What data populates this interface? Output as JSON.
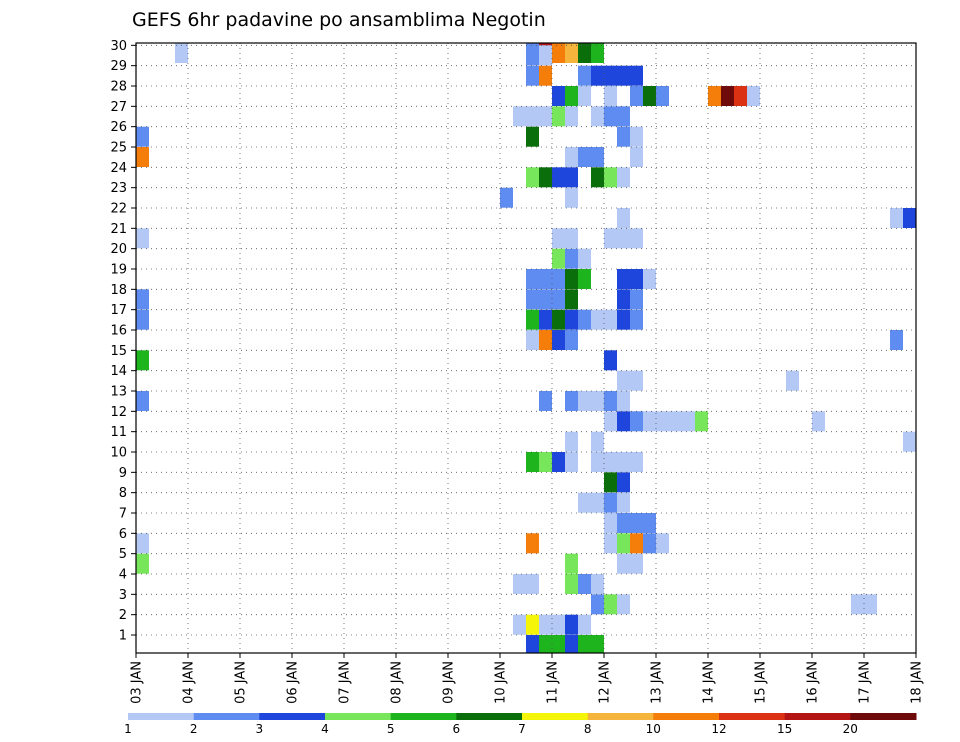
{
  "chart_data": {
    "type": "heatmap",
    "title": "GEFS 6hr padavine po ansamblima Negotin",
    "x_tick_labels": [
      "03 JAN",
      "04 JAN",
      "05 JAN",
      "06 JAN",
      "07 JAN",
      "08 JAN",
      "09 JAN",
      "10 JAN",
      "11 JAN",
      "12 JAN",
      "13 JAN",
      "14 JAN",
      "15 JAN",
      "16 JAN",
      "17 JAN",
      "18 JAN"
    ],
    "y_tick_labels": [
      "1",
      "2",
      "3",
      "4",
      "5",
      "6",
      "7",
      "8",
      "9",
      "10",
      "11",
      "12",
      "13",
      "14",
      "15",
      "16",
      "17",
      "18",
      "19",
      "20",
      "21",
      "22",
      "23",
      "24",
      "25",
      "26",
      "27",
      "28",
      "29",
      "30"
    ],
    "y_range": [
      0,
      30
    ],
    "grid": true,
    "x_unit_note": "column = 6-hour step starting 03 JAN 00Z",
    "colorbar": {
      "labels": [
        "1",
        "2",
        "3",
        "4",
        "5",
        "6",
        "7",
        "8",
        "10",
        "12",
        "15",
        "20"
      ],
      "colors": [
        "#b4c8f5",
        "#5f8cf0",
        "#1e46dc",
        "#78e65a",
        "#1eb41e",
        "#0a6e0a",
        "#f5f50a",
        "#f5b43c",
        "#f57d0a",
        "#dc3214",
        "#b41414",
        "#6e0a0a"
      ]
    },
    "cells": [
      [
        30,
        15,
        1
      ],
      [
        30,
        42,
        2
      ],
      [
        30,
        43,
        11
      ],
      [
        30,
        44,
        9
      ],
      [
        30,
        45,
        8
      ],
      [
        30,
        46,
        6
      ],
      [
        30,
        47,
        5
      ],
      [
        29,
        42,
        2
      ],
      [
        29,
        43,
        1
      ],
      [
        29,
        82,
        1
      ],
      [
        28,
        42,
        2
      ],
      [
        28,
        43,
        9
      ],
      [
        28,
        46,
        2
      ],
      [
        28,
        47,
        3
      ],
      [
        28,
        48,
        3
      ],
      [
        28,
        49,
        3
      ],
      [
        28,
        50,
        3
      ],
      [
        27,
        44,
        3
      ],
      [
        27,
        45,
        5
      ],
      [
        27,
        46,
        1
      ],
      [
        27,
        48,
        1
      ],
      [
        27,
        50,
        2
      ],
      [
        27,
        51,
        6
      ],
      [
        27,
        52,
        2
      ],
      [
        27,
        56,
        9
      ],
      [
        27,
        57,
        12
      ],
      [
        27,
        58,
        10
      ],
      [
        27,
        59,
        1
      ],
      [
        27,
        80,
        1
      ],
      [
        27,
        81,
        3
      ],
      [
        27,
        82,
        9
      ],
      [
        27,
        83,
        4
      ],
      [
        26,
        41,
        1
      ],
      [
        26,
        42,
        1
      ],
      [
        26,
        43,
        1
      ],
      [
        26,
        44,
        4
      ],
      [
        26,
        45,
        1
      ],
      [
        26,
        47,
        1
      ],
      [
        26,
        48,
        2
      ],
      [
        26,
        49,
        2
      ],
      [
        26,
        82,
        1
      ],
      [
        26,
        83,
        12
      ],
      [
        25,
        11,
        4
      ],
      [
        25,
        12,
        2
      ],
      [
        25,
        42,
        6
      ],
      [
        25,
        49,
        2
      ],
      [
        25,
        50,
        1
      ],
      [
        25,
        78,
        1
      ],
      [
        25,
        79,
        2
      ],
      [
        25,
        81,
        1
      ],
      [
        25,
        83,
        4
      ],
      [
        24,
        11,
        3
      ],
      [
        24,
        12,
        9
      ],
      [
        24,
        45,
        1
      ],
      [
        24,
        46,
        2
      ],
      [
        24,
        47,
        2
      ],
      [
        24,
        50,
        1
      ],
      [
        23,
        11,
        1
      ],
      [
        23,
        42,
        4
      ],
      [
        23,
        43,
        6
      ],
      [
        23,
        44,
        3
      ],
      [
        23,
        45,
        3
      ],
      [
        23,
        47,
        6
      ],
      [
        23,
        48,
        4
      ],
      [
        23,
        49,
        1
      ],
      [
        23,
        78,
        1
      ],
      [
        23,
        79,
        2
      ],
      [
        22,
        40,
        2
      ],
      [
        22,
        45,
        1
      ],
      [
        21,
        49,
        1
      ],
      [
        21,
        70,
        1
      ],
      [
        21,
        71,
        3
      ],
      [
        21,
        72,
        4
      ],
      [
        21,
        73,
        4
      ],
      [
        21,
        74,
        3
      ],
      [
        21,
        75,
        1
      ],
      [
        20,
        12,
        1
      ],
      [
        20,
        44,
        1
      ],
      [
        20,
        45,
        1
      ],
      [
        20,
        48,
        1
      ],
      [
        20,
        49,
        1
      ],
      [
        20,
        50,
        1
      ],
      [
        19,
        11,
        3
      ],
      [
        19,
        44,
        4
      ],
      [
        19,
        45,
        2
      ],
      [
        19,
        46,
        1
      ],
      [
        19,
        72,
        1
      ],
      [
        19,
        73,
        5
      ],
      [
        18,
        42,
        2
      ],
      [
        18,
        43,
        2
      ],
      [
        18,
        44,
        2
      ],
      [
        18,
        45,
        6
      ],
      [
        18,
        46,
        5
      ],
      [
        18,
        49,
        3
      ],
      [
        18,
        50,
        3
      ],
      [
        18,
        51,
        1
      ],
      [
        17,
        12,
        2
      ],
      [
        17,
        42,
        2
      ],
      [
        17,
        43,
        2
      ],
      [
        17,
        44,
        2
      ],
      [
        17,
        45,
        6
      ],
      [
        17,
        49,
        3
      ],
      [
        17,
        50,
        2
      ],
      [
        16,
        12,
        2
      ],
      [
        16,
        42,
        5
      ],
      [
        16,
        43,
        3
      ],
      [
        16,
        44,
        6
      ],
      [
        16,
        45,
        3
      ],
      [
        16,
        46,
        2
      ],
      [
        16,
        47,
        1
      ],
      [
        16,
        48,
        1
      ],
      [
        16,
        49,
        3
      ],
      [
        16,
        50,
        2
      ],
      [
        15,
        42,
        1
      ],
      [
        15,
        43,
        9
      ],
      [
        15,
        44,
        3
      ],
      [
        15,
        45,
        2
      ],
      [
        15,
        70,
        2
      ],
      [
        15,
        74,
        1
      ],
      [
        15,
        75,
        2
      ],
      [
        15,
        76,
        4
      ],
      [
        15,
        77,
        1
      ],
      [
        14,
        12,
        5
      ],
      [
        14,
        48,
        3
      ],
      [
        14,
        82,
        1
      ],
      [
        14,
        83,
        5
      ],
      [
        13,
        49,
        1
      ],
      [
        13,
        50,
        1
      ],
      [
        13,
        62,
        1
      ],
      [
        13,
        80,
        1
      ],
      [
        13,
        81,
        6
      ],
      [
        13,
        82,
        4
      ],
      [
        13,
        83,
        2
      ],
      [
        12,
        11,
        2
      ],
      [
        12,
        12,
        2
      ],
      [
        12,
        43,
        2
      ],
      [
        12,
        45,
        2
      ],
      [
        12,
        46,
        1
      ],
      [
        12,
        47,
        1
      ],
      [
        12,
        48,
        2
      ],
      [
        12,
        49,
        1
      ],
      [
        11,
        48,
        1
      ],
      [
        11,
        49,
        3
      ],
      [
        11,
        50,
        2
      ],
      [
        11,
        51,
        1
      ],
      [
        11,
        52,
        1
      ],
      [
        11,
        53,
        1
      ],
      [
        11,
        54,
        1
      ],
      [
        11,
        55,
        4
      ],
      [
        11,
        64,
        1
      ],
      [
        11,
        79,
        1
      ],
      [
        11,
        80,
        5
      ],
      [
        11,
        81,
        2
      ],
      [
        10,
        45,
        1
      ],
      [
        10,
        47,
        1
      ],
      [
        10,
        71,
        1
      ],
      [
        10,
        72,
        2
      ],
      [
        9,
        42,
        5
      ],
      [
        9,
        43,
        4
      ],
      [
        9,
        44,
        3
      ],
      [
        9,
        45,
        1
      ],
      [
        9,
        47,
        1
      ],
      [
        9,
        48,
        1
      ],
      [
        9,
        49,
        1
      ],
      [
        9,
        50,
        1
      ],
      [
        9,
        76,
        2
      ],
      [
        8,
        11,
        2
      ],
      [
        8,
        48,
        6
      ],
      [
        8,
        49,
        3
      ],
      [
        7,
        46,
        1
      ],
      [
        7,
        47,
        1
      ],
      [
        7,
        48,
        2
      ],
      [
        7,
        49,
        1
      ],
      [
        6,
        11,
        1
      ],
      [
        6,
        48,
        1
      ],
      [
        6,
        49,
        2
      ],
      [
        6,
        50,
        2
      ],
      [
        6,
        51,
        2
      ],
      [
        5,
        12,
        1
      ],
      [
        5,
        42,
        9
      ],
      [
        5,
        48,
        1
      ],
      [
        5,
        49,
        4
      ],
      [
        5,
        50,
        9
      ],
      [
        5,
        51,
        2
      ],
      [
        5,
        52,
        1
      ],
      [
        5,
        73,
        1
      ],
      [
        5,
        74,
        1
      ],
      [
        5,
        75,
        10
      ],
      [
        5,
        76,
        1
      ],
      [
        5,
        81,
        1
      ],
      [
        5,
        82,
        2
      ],
      [
        4,
        12,
        4
      ],
      [
        4,
        45,
        4
      ],
      [
        4,
        49,
        1
      ],
      [
        4,
        50,
        1
      ],
      [
        4,
        77,
        1
      ],
      [
        4,
        81,
        4
      ],
      [
        4,
        82,
        4
      ],
      [
        3,
        41,
        1
      ],
      [
        3,
        42,
        1
      ],
      [
        3,
        45,
        4
      ],
      [
        3,
        46,
        2
      ],
      [
        3,
        47,
        1
      ],
      [
        3,
        81,
        2
      ],
      [
        2,
        47,
        2
      ],
      [
        2,
        48,
        4
      ],
      [
        2,
        49,
        1
      ],
      [
        2,
        67,
        1
      ],
      [
        2,
        68,
        1
      ],
      [
        1,
        11,
        2
      ],
      [
        1,
        41,
        1
      ],
      [
        1,
        42,
        7
      ],
      [
        1,
        43,
        1
      ],
      [
        1,
        44,
        1
      ],
      [
        1,
        45,
        3
      ],
      [
        1,
        46,
        1
      ],
      [
        0,
        42,
        3
      ],
      [
        0,
        43,
        5
      ],
      [
        0,
        44,
        5
      ],
      [
        0,
        45,
        3
      ],
      [
        0,
        46,
        5
      ],
      [
        0,
        47,
        5
      ],
      [
        0,
        73,
        2
      ]
    ]
  }
}
